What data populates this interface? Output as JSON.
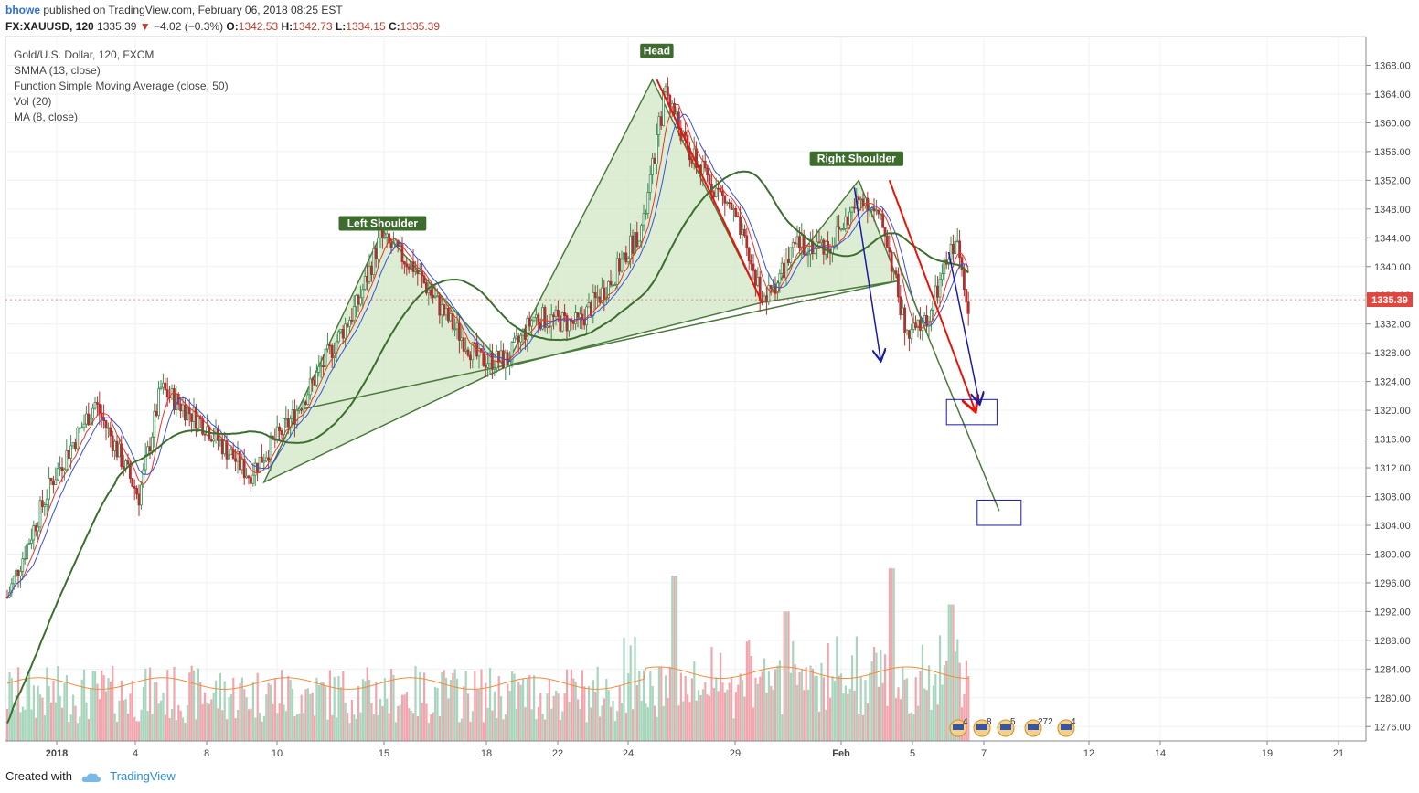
{
  "header": {
    "user": "bhowe",
    "published": "published on TradingView.com, February 06, 2018 08:25 EST",
    "symbol": "FX:XAUUSD, 120",
    "price": "1335.39",
    "change_arrow": "▼",
    "change": "−4.02 (−0.3%)",
    "o_label": "O:",
    "o": "1342.53",
    "h_label": "H:",
    "h": "1342.73",
    "l_label": "L:",
    "l": "1334.15",
    "c_label": "C:",
    "c": "1335.39"
  },
  "legend": [
    "Gold/U.S. Dollar, 120, FXCM",
    "SMMA (13, close)",
    "Function Simple Moving Average (close, 50)",
    "Vol (20)",
    "MA (8, close)"
  ],
  "footer": {
    "created": "Created with",
    "brand": "TradingView"
  },
  "colors": {
    "up": "#3c8c50",
    "down": "#b03030",
    "pattern": "#4a7a3a",
    "pattern_fill": "#cfe6c2",
    "projection": "#e8130a",
    "target_box": "#1a1aa8",
    "price_tag": "#e0463e",
    "vol_up": "#a8d6bd",
    "vol_down": "#f1a6ae"
  },
  "chart_data": {
    "type": "candlestick",
    "title": "Gold/U.S. Dollar, 120, FXCM",
    "ylim": [
      1274,
      1372
    ],
    "y_ticks": [
      1276,
      1280,
      1284,
      1288,
      1292,
      1296,
      1300,
      1304,
      1308,
      1312,
      1316,
      1320,
      1324,
      1328,
      1332,
      1336,
      1340,
      1344,
      1348,
      1352,
      1356,
      1360,
      1364,
      1368
    ],
    "last_price": "1335.39",
    "x_tick_labels": [
      "2018",
      "4",
      "8",
      "10",
      "15",
      "18",
      "22",
      "24",
      "29",
      "Feb",
      "5",
      "7",
      "12",
      "14",
      "19",
      "21"
    ],
    "bar_price_path": [
      {
        "bar": 0,
        "price": 1294
      },
      {
        "bar": 20,
        "price": 1310
      },
      {
        "bar": 40,
        "price": 1321
      },
      {
        "bar": 60,
        "price": 1308
      },
      {
        "bar": 70,
        "price": 1323
      },
      {
        "bar": 90,
        "price": 1318
      },
      {
        "bar": 110,
        "price": 1311
      },
      {
        "bar": 130,
        "price": 1319
      },
      {
        "bar": 160,
        "price": 1335
      },
      {
        "bar": 170,
        "price": 1344
      },
      {
        "bar": 185,
        "price": 1340
      },
      {
        "bar": 200,
        "price": 1333
      },
      {
        "bar": 215,
        "price": 1327
      },
      {
        "bar": 228,
        "price": 1327
      },
      {
        "bar": 240,
        "price": 1333
      },
      {
        "bar": 260,
        "price": 1332
      },
      {
        "bar": 275,
        "price": 1338
      },
      {
        "bar": 290,
        "price": 1346
      },
      {
        "bar": 300,
        "price": 1365
      },
      {
        "bar": 310,
        "price": 1356
      },
      {
        "bar": 330,
        "price": 1348
      },
      {
        "bar": 345,
        "price": 1335
      },
      {
        "bar": 360,
        "price": 1343
      },
      {
        "bar": 375,
        "price": 1343
      },
      {
        "bar": 390,
        "price": 1350
      },
      {
        "bar": 400,
        "price": 1345
      },
      {
        "bar": 410,
        "price": 1330
      },
      {
        "bar": 420,
        "price": 1333
      },
      {
        "bar": 432,
        "price": 1344
      },
      {
        "bar": 438,
        "price": 1335
      }
    ],
    "volume_spikes": [
      {
        "bar": 304,
        "value": 1297
      },
      {
        "bar": 355,
        "value": 1292
      },
      {
        "bar": 403,
        "value": 1298
      },
      {
        "bar": 430,
        "value": 1293
      }
    ],
    "annotations": [
      {
        "text": "Left Shoulder",
        "bar": 171,
        "price": 1346
      },
      {
        "text": "Head",
        "bar": 296,
        "price": 1370
      },
      {
        "text": "Right Shoulder",
        "bar": 387,
        "price": 1355
      }
    ],
    "pattern_points": [
      {
        "bar": 117,
        "price": 1310
      },
      {
        "bar": 171,
        "price": 1345
      },
      {
        "bar": 227,
        "price": 1326
      },
      {
        "bar": 294,
        "price": 1366
      },
      {
        "bar": 344,
        "price": 1335
      },
      {
        "bar": 388,
        "price": 1352
      },
      {
        "bar": 406,
        "price": 1338
      }
    ],
    "neckline": [
      {
        "bar": 132,
        "price": 1320
      },
      {
        "bar": 406,
        "price": 1338
      }
    ],
    "projection_lines": [
      {
        "color": "green",
        "from": {
          "bar": 404,
          "price": 1342
        },
        "to": {
          "bar": 452,
          "price": 1306
        }
      },
      {
        "color": "red",
        "from": {
          "bar": 402,
          "price": 1352
        },
        "to": {
          "bar": 441,
          "price": 1320
        }
      },
      {
        "color": "blue",
        "from": {
          "bar": 386,
          "price": 1351
        },
        "to": {
          "bar": 398,
          "price": 1327
        }
      },
      {
        "color": "blue",
        "from": {
          "bar": 429,
          "price": 1342
        },
        "to": {
          "bar": 443,
          "price": 1321
        }
      }
    ],
    "target_boxes": [
      {
        "bar_from": 428,
        "bar_to": 451,
        "price_low": 1318,
        "price_high": 1321.5
      },
      {
        "bar_from": 442,
        "bar_to": 462,
        "price_low": 1304,
        "price_high": 1307.5
      }
    ],
    "event_markers": [
      "4",
      "8",
      "5",
      "272",
      "4"
    ]
  }
}
